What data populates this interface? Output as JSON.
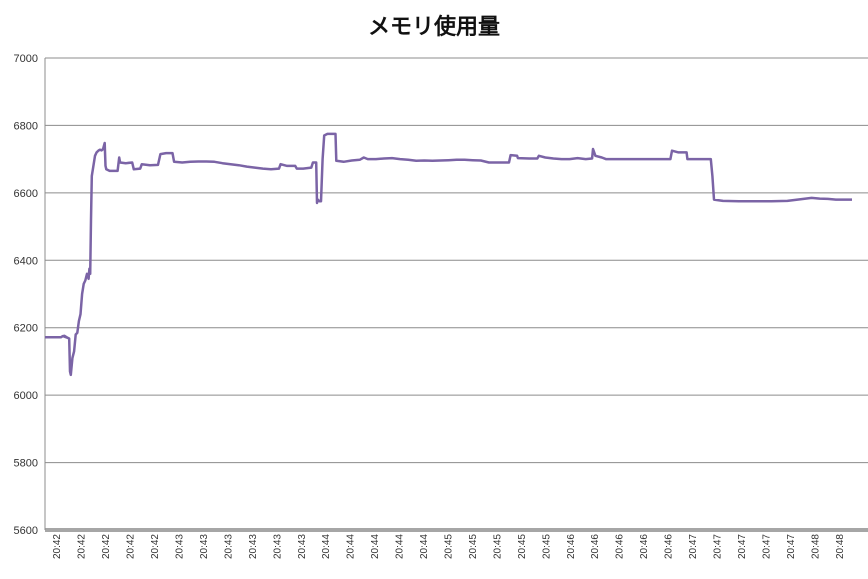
{
  "chart_data": {
    "type": "line",
    "title": "メモリ使用量",
    "xlabel": "",
    "ylabel": "",
    "ylim": [
      5600,
      7000
    ],
    "y_ticks": [
      5600,
      5800,
      6000,
      6200,
      6400,
      6600,
      6800,
      7000
    ],
    "grid": true,
    "legend": "none",
    "x_categories": [
      "20:42",
      "20:42",
      "20:42",
      "20:42",
      "20:42",
      "20:43",
      "20:43",
      "20:43",
      "20:43",
      "20:43",
      "20:43",
      "20:44",
      "20:44",
      "20:44",
      "20:44",
      "20:44",
      "20:45",
      "20:45",
      "20:45",
      "20:45",
      "20:45",
      "20:46",
      "20:46",
      "20:46",
      "20:46",
      "20:46",
      "20:47",
      "20:47",
      "20:47",
      "20:47",
      "20:47",
      "20:48",
      "20:48"
    ],
    "series": [
      {
        "color": "#7b64a6",
        "points": [
          [
            0.0,
            6172
          ],
          [
            0.02,
            6172
          ],
          [
            0.022,
            6175
          ],
          [
            0.024,
            6176
          ],
          [
            0.026,
            6173
          ],
          [
            0.028,
            6170
          ],
          [
            0.022,
            6175
          ],
          [
            0.024,
            6176
          ],
          [
            0.026,
            6173
          ],
          [
            0.028,
            6170
          ],
          [
            0.03,
            6168
          ],
          [
            0.031,
            6070
          ],
          [
            0.032,
            6060
          ],
          [
            0.034,
            6110
          ],
          [
            0.036,
            6130
          ],
          [
            0.038,
            6180
          ],
          [
            0.04,
            6185
          ],
          [
            0.042,
            6220
          ],
          [
            0.044,
            6240
          ],
          [
            0.046,
            6300
          ],
          [
            0.048,
            6330
          ],
          [
            0.05,
            6340
          ],
          [
            0.052,
            6360
          ],
          [
            0.054,
            6345
          ],
          [
            0.055,
            6375
          ],
          [
            0.056,
            6360
          ],
          [
            0.057,
            6520
          ],
          [
            0.058,
            6650
          ],
          [
            0.06,
            6680
          ],
          [
            0.062,
            6710
          ],
          [
            0.064,
            6720
          ],
          [
            0.066,
            6725
          ],
          [
            0.068,
            6728
          ],
          [
            0.07,
            6726
          ],
          [
            0.072,
            6730
          ],
          [
            0.074,
            6748
          ],
          [
            0.075,
            6680
          ],
          [
            0.076,
            6670
          ],
          [
            0.08,
            6665
          ],
          [
            0.09,
            6665
          ],
          [
            0.092,
            6705
          ],
          [
            0.093,
            6690
          ],
          [
            0.1,
            6688
          ],
          [
            0.108,
            6690
          ],
          [
            0.11,
            6670
          ],
          [
            0.118,
            6672
          ],
          [
            0.12,
            6685
          ],
          [
            0.13,
            6682
          ],
          [
            0.14,
            6683
          ],
          [
            0.143,
            6715
          ],
          [
            0.15,
            6718
          ],
          [
            0.158,
            6718
          ],
          [
            0.16,
            6692
          ],
          [
            0.17,
            6690
          ],
          [
            0.18,
            6692
          ],
          [
            0.19,
            6693
          ],
          [
            0.2,
            6693
          ],
          [
            0.21,
            6692
          ],
          [
            0.22,
            6688
          ],
          [
            0.23,
            6685
          ],
          [
            0.24,
            6682
          ],
          [
            0.25,
            6678
          ],
          [
            0.26,
            6675
          ],
          [
            0.27,
            6672
          ],
          [
            0.28,
            6670
          ],
          [
            0.29,
            6672
          ],
          [
            0.292,
            6685
          ],
          [
            0.3,
            6680
          ],
          [
            0.31,
            6680
          ],
          [
            0.312,
            6672
          ],
          [
            0.32,
            6672
          ],
          [
            0.33,
            6675
          ],
          [
            0.332,
            6690
          ],
          [
            0.336,
            6690
          ],
          [
            0.337,
            6570
          ],
          [
            0.338,
            6580
          ],
          [
            0.34,
            6575
          ],
          [
            0.342,
            6575
          ],
          [
            0.344,
            6700
          ],
          [
            0.346,
            6770
          ],
          [
            0.35,
            6775
          ],
          [
            0.36,
            6775
          ],
          [
            0.361,
            6695
          ],
          [
            0.37,
            6692
          ],
          [
            0.38,
            6696
          ],
          [
            0.39,
            6698
          ],
          [
            0.395,
            6705
          ],
          [
            0.4,
            6700
          ],
          [
            0.41,
            6700
          ],
          [
            0.42,
            6702
          ],
          [
            0.43,
            6703
          ],
          [
            0.44,
            6700
          ],
          [
            0.45,
            6698
          ],
          [
            0.46,
            6695
          ],
          [
            0.47,
            6696
          ],
          [
            0.48,
            6695
          ],
          [
            0.49,
            6696
          ],
          [
            0.5,
            6697
          ],
          [
            0.51,
            6698
          ],
          [
            0.52,
            6698
          ],
          [
            0.53,
            6697
          ],
          [
            0.54,
            6696
          ],
          [
            0.55,
            6690
          ],
          [
            0.56,
            6690
          ],
          [
            0.575,
            6690
          ],
          [
            0.577,
            6712
          ],
          [
            0.585,
            6710
          ],
          [
            0.586,
            6703
          ],
          [
            0.6,
            6702
          ],
          [
            0.61,
            6702
          ],
          [
            0.612,
            6710
          ],
          [
            0.62,
            6705
          ],
          [
            0.63,
            6702
          ],
          [
            0.64,
            6700
          ],
          [
            0.65,
            6700
          ],
          [
            0.66,
            6703
          ],
          [
            0.67,
            6700
          ],
          [
            0.678,
            6702
          ],
          [
            0.679,
            6730
          ],
          [
            0.682,
            6710
          ],
          [
            0.69,
            6705
          ],
          [
            0.695,
            6700
          ],
          [
            0.71,
            6700
          ],
          [
            0.73,
            6700
          ],
          [
            0.75,
            6700
          ],
          [
            0.77,
            6700
          ],
          [
            0.775,
            6700
          ],
          [
            0.777,
            6725
          ],
          [
            0.785,
            6720
          ],
          [
            0.795,
            6720
          ],
          [
            0.796,
            6700
          ],
          [
            0.81,
            6700
          ],
          [
            0.825,
            6700
          ],
          [
            0.827,
            6650
          ],
          [
            0.829,
            6580
          ],
          [
            0.84,
            6576
          ],
          [
            0.86,
            6575
          ],
          [
            0.88,
            6575
          ],
          [
            0.9,
            6575
          ],
          [
            0.92,
            6576
          ],
          [
            0.94,
            6582
          ],
          [
            0.95,
            6585
          ],
          [
            0.96,
            6583
          ],
          [
            0.97,
            6582
          ],
          [
            0.98,
            6580
          ],
          [
            1.0,
            6580
          ]
        ]
      }
    ]
  }
}
